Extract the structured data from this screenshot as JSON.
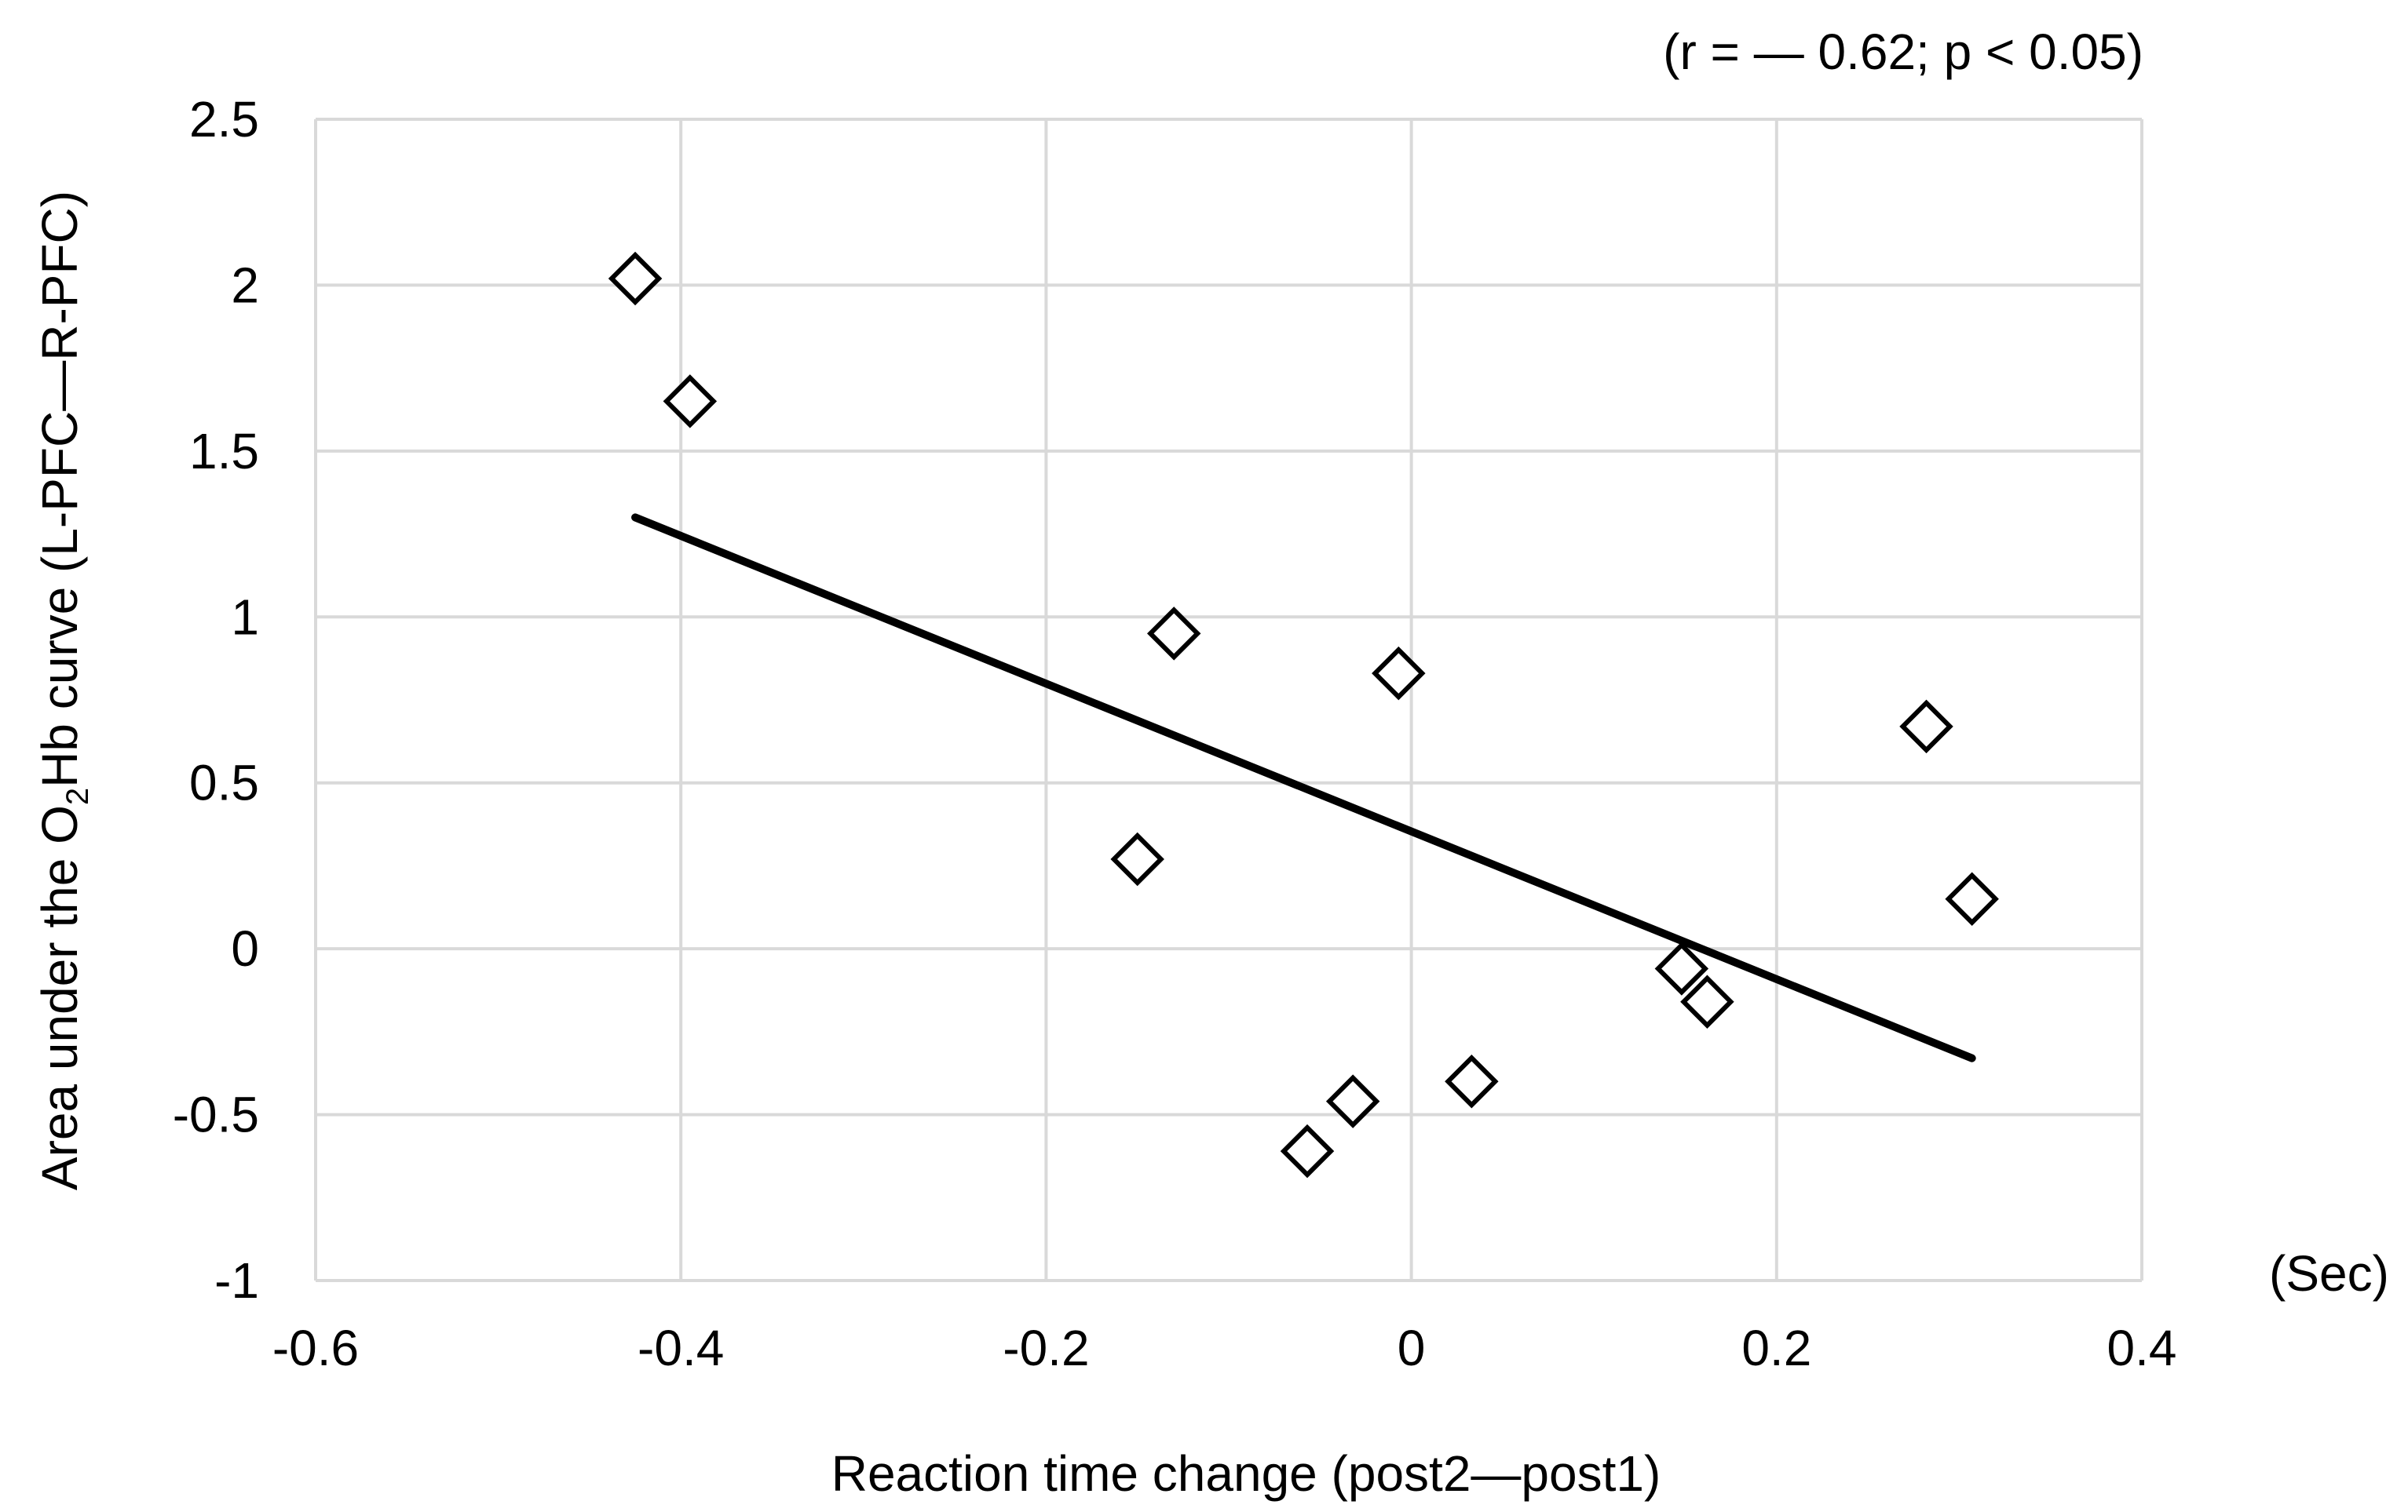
{
  "chart_data": {
    "type": "scatter",
    "annotation": "(r = — 0.62; p < 0.05)",
    "xlabel": "Reaction time change (post2—post1)",
    "x_unit": "(Sec)",
    "ylabel": {
      "before": "Area under the O",
      "subscript": "2",
      "after": "Hb curve (L-PFC—R-PFC)"
    },
    "xlim": [
      -0.6,
      0.4
    ],
    "ylim": [
      -1,
      2.5
    ],
    "x_ticks": [
      -0.6,
      -0.4,
      -0.2,
      0,
      0.2,
      0.4
    ],
    "y_ticks": [
      2.5,
      2,
      1.5,
      1,
      0.5,
      0,
      -0.5,
      -1
    ],
    "x_tick_labels": [
      "-0.6",
      "-0.4",
      "-0.2",
      "0",
      "0.2",
      "0.4"
    ],
    "y_tick_labels": [
      "2.5",
      "2",
      "1.5",
      "1",
      "0.5",
      "0",
      "-0.5",
      "-1"
    ],
    "grid": true,
    "legend": "none",
    "marker": "open-diamond",
    "points": [
      {
        "x": -0.425,
        "y": 2.02
      },
      {
        "x": -0.395,
        "y": 1.65
      },
      {
        "x": -0.13,
        "y": 0.95
      },
      {
        "x": -0.15,
        "y": 0.27
      },
      {
        "x": -0.007,
        "y": 0.83
      },
      {
        "x": -0.057,
        "y": -0.61
      },
      {
        "x": -0.032,
        "y": -0.46
      },
      {
        "x": 0.033,
        "y": -0.4
      },
      {
        "x": 0.148,
        "y": -0.06
      },
      {
        "x": 0.162,
        "y": -0.16
      },
      {
        "x": 0.282,
        "y": 0.67
      },
      {
        "x": 0.307,
        "y": 0.15
      }
    ],
    "trendline": {
      "x": [
        -0.425,
        0.307
      ],
      "y": [
        1.3,
        -0.33
      ]
    },
    "colors": {
      "grid": "#d9d9d9",
      "marker": "#000000",
      "trendline": "#000000"
    }
  }
}
